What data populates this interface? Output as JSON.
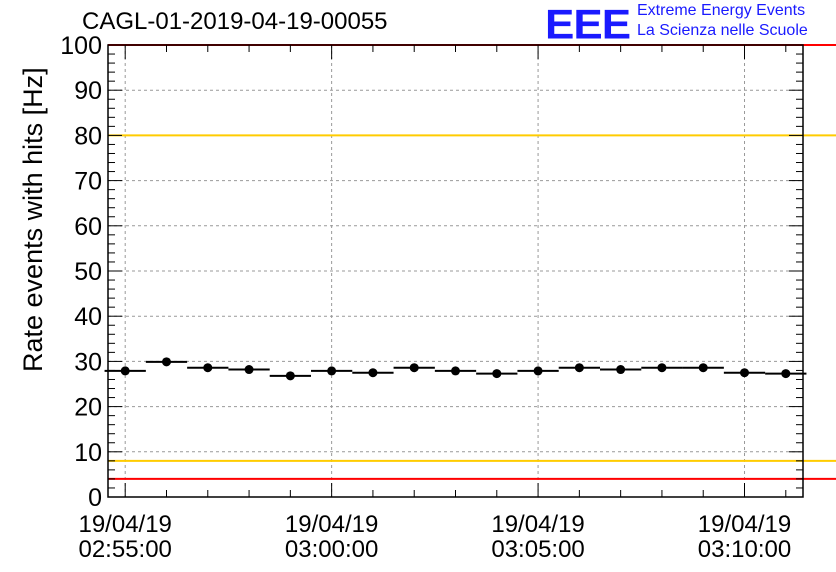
{
  "header": {
    "run_id": "CAGL-01-2019-04-19-00055",
    "logo_mark": "EEE",
    "logo_line1": "Extreme Energy Events",
    "logo_line2": "La Scienza nelle Scuole"
  },
  "colors": {
    "limit_upper": "#ff0000",
    "limit_lower": "#ff0000",
    "warn_upper": "#ffcc00",
    "warn_lower": "#ffcc00",
    "points": "#000000",
    "grid": "#999999",
    "logo": "#1a1aff"
  },
  "chart_data": {
    "type": "scatter",
    "title": "",
    "xlabel": "",
    "ylabel": "Rate events with hits [Hz]",
    "ylim": [
      0,
      100
    ],
    "xlim": [
      "19/04/19 02:54:35",
      "19/04/19 03:11:25"
    ],
    "y_ticks": [
      0,
      10,
      20,
      30,
      40,
      50,
      60,
      70,
      80,
      90,
      100
    ],
    "x_ticks": [
      {
        "t": "19/04/19 02:55:00",
        "date": "19/04/19",
        "time": "02:55:00"
      },
      {
        "t": "19/04/19 03:00:00",
        "date": "19/04/19",
        "time": "03:00:00"
      },
      {
        "t": "19/04/19 03:05:00",
        "date": "19/04/19",
        "time": "03:05:00"
      },
      {
        "t": "19/04/19 03:10:00",
        "date": "19/04/19",
        "time": "03:10:00"
      }
    ],
    "grid": true,
    "reference_lines": [
      {
        "y": 100,
        "color": "red"
      },
      {
        "y": 80,
        "color": "yellow"
      },
      {
        "y": 8,
        "color": "yellow"
      },
      {
        "y": 4,
        "color": "red"
      }
    ],
    "bin_width_seconds": 60,
    "series": [
      {
        "x": [
          "02:55:00",
          "02:56:00",
          "02:57:00",
          "02:58:00",
          "02:59:00",
          "03:00:00",
          "03:01:00",
          "03:02:00",
          "03:03:00",
          "03:04:00",
          "03:05:00",
          "03:06:00",
          "03:07:00",
          "03:08:00",
          "03:09:00",
          "03:10:00",
          "03:11:00"
        ],
        "y": [
          27.9,
          29.9,
          28.6,
          28.2,
          26.8,
          27.9,
          27.5,
          28.6,
          27.9,
          27.3,
          27.9,
          28.6,
          28.2,
          28.6,
          28.6,
          27.5,
          27.3
        ]
      }
    ]
  }
}
